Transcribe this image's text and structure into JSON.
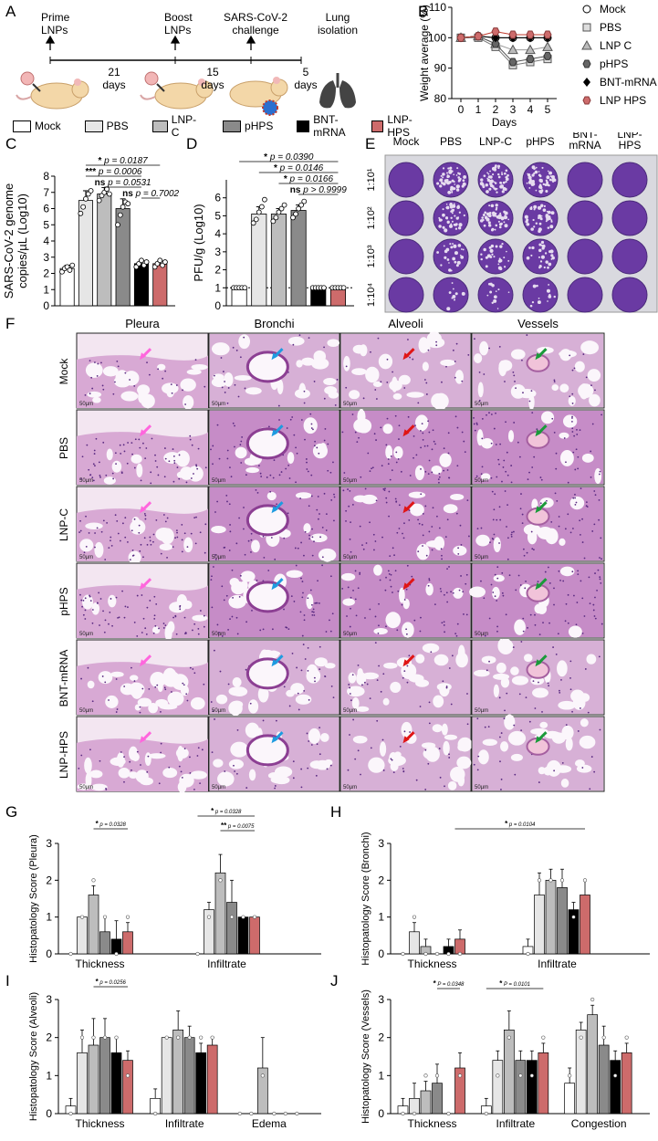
{
  "panels": {
    "A": "A",
    "B": "B",
    "C": "C",
    "D": "D",
    "E": "E",
    "F": "F",
    "G": "G",
    "H": "H",
    "I": "I",
    "J": "J"
  },
  "timeline": {
    "events": [
      "Prime LNPs",
      "Boost LNPs",
      "SARS-CoV-2 challenge",
      "Lung isolation"
    ],
    "event_lines": [
      [
        "Prime",
        "LNPs"
      ],
      [
        "Boost",
        "LNPs"
      ],
      [
        "SARS-CoV-2",
        "challenge"
      ],
      [
        "Lung",
        "isolation"
      ]
    ],
    "intervals": [
      [
        "21",
        "days"
      ],
      [
        "15",
        "days"
      ],
      [
        "5",
        "days"
      ]
    ]
  },
  "group_legend": [
    {
      "label": "Mock",
      "color": "#ffffff"
    },
    {
      "label": "PBS",
      "color": "#e6e6e6"
    },
    {
      "label": "LNP-C",
      "color": "#bdbdbd"
    },
    {
      "label": "pHPS",
      "color": "#8a8a8a"
    },
    {
      "label": "BNT-mRNA",
      "color": "#000000"
    },
    {
      "label": "LNP-HPS",
      "color": "#cd6b6b"
    }
  ],
  "colors": {
    "mock": "#ffffff",
    "pbs": "#e6e6e6",
    "lnpc": "#bdbdbd",
    "phps": "#8a8a8a",
    "bnt": "#000000",
    "lnphps": "#cd6b6b",
    "crystal": "#6a3aa3"
  },
  "chart_data": [
    {
      "id": "B",
      "type": "line",
      "ylabel": "Weight average (%)",
      "xlabel": "Days",
      "x": [
        0,
        1,
        2,
        3,
        4,
        5
      ],
      "ylim": [
        80,
        110
      ],
      "yticks": [
        80,
        90,
        100,
        110
      ],
      "series": [
        {
          "name": "Mock",
          "marker": "circle-open",
          "values": [
            100,
            100.5,
            100,
            100,
            100,
            100
          ]
        },
        {
          "name": "PBS",
          "marker": "square-gray",
          "values": [
            100,
            100,
            97,
            91,
            92,
            93
          ]
        },
        {
          "name": "LNP C",
          "marker": "triangle-gray",
          "values": [
            100,
            100.5,
            98,
            96,
            96,
            97
          ]
        },
        {
          "name": "pHPS",
          "marker": "hexagon-dark",
          "values": [
            100,
            100.5,
            98,
            92,
            93,
            94
          ]
        },
        {
          "name": "BNT-mRNA",
          "marker": "diamond-black",
          "values": [
            100,
            100.5,
            100,
            100,
            100,
            100
          ]
        },
        {
          "name": "LNP HPS",
          "marker": "hexagon-red",
          "values": [
            100,
            100.5,
            102,
            101,
            101,
            101
          ]
        }
      ]
    },
    {
      "id": "C",
      "type": "bar",
      "ylabel_lines": [
        "SARS-CoV-2 genome",
        "copies/µL (Log10)"
      ],
      "ylim": [
        0,
        8
      ],
      "yticks": [
        0,
        1,
        2,
        3,
        4,
        5,
        6,
        7,
        8
      ],
      "categories": [
        "Mock",
        "PBS",
        "LNP-C",
        "pHPS",
        "BNT-mRNA",
        "LNP-HPS"
      ],
      "values": [
        2.3,
        6.5,
        6.9,
        6.0,
        2.6,
        2.6
      ],
      "errors": [
        0.2,
        0.6,
        0.4,
        0.6,
        0.2,
        0.2
      ],
      "points": [
        [
          2.1,
          2.3,
          2.4,
          2.2,
          2.5
        ],
        [
          5.7,
          6.1,
          6.6,
          6.9,
          7.1
        ],
        [
          6.5,
          6.8,
          7.0,
          7.2,
          6.9
        ],
        [
          5.0,
          5.6,
          6.1,
          6.4,
          6.3
        ],
        [
          2.4,
          2.6,
          2.8,
          2.5,
          2.7
        ],
        [
          2.4,
          2.6,
          2.8,
          2.5,
          2.7
        ]
      ],
      "annotations": [
        {
          "stars": "*",
          "text": "p = 0.0187"
        },
        {
          "stars": "***",
          "text": "p = 0.0006"
        },
        {
          "stars": "ns",
          "text": "p = 0.0531"
        },
        {
          "stars": "ns",
          "text": "p = 0.7002"
        }
      ]
    },
    {
      "id": "D",
      "type": "bar",
      "ylabel": "PFU/g (Log10)",
      "ylim": [
        0,
        7
      ],
      "yticks": [
        0,
        1,
        2,
        3,
        4,
        5,
        6
      ],
      "categories": [
        "Mock",
        "PBS",
        "LNP-C",
        "pHPS",
        "BNT-mRNA",
        "LNP-HPS"
      ],
      "values": [
        1.0,
        5.1,
        5.1,
        5.3,
        1.0,
        1.0
      ],
      "errors": [
        0.05,
        0.4,
        0.3,
        0.3,
        0.05,
        0.05
      ],
      "points": [
        [
          1,
          1,
          1,
          1,
          1
        ],
        [
          4.6,
          4.8,
          5.2,
          5.5,
          5.9
        ],
        [
          4.7,
          4.9,
          5.2,
          5.4,
          5.6
        ],
        [
          4.9,
          5.1,
          5.4,
          5.6,
          5.8
        ],
        [
          1,
          1,
          1,
          1,
          1
        ],
        [
          1,
          1,
          1,
          1,
          1
        ]
      ],
      "annotations": [
        {
          "stars": "*",
          "text": "p = 0.0390"
        },
        {
          "stars": "*",
          "text": "p = 0.0146"
        },
        {
          "stars": "*",
          "text": "p = 0.0166"
        },
        {
          "stars": "ns",
          "text": "p > 0.9999"
        }
      ]
    },
    {
      "id": "G",
      "type": "bar",
      "ylabel": "Histopatology Score (Pleura)",
      "ylim": [
        0,
        3
      ],
      "yticks": [
        0,
        1,
        2,
        3
      ],
      "groups": [
        "Thickness",
        "Infiltrate"
      ],
      "values": [
        [
          0,
          1.0,
          1.6,
          0.6,
          0.4,
          0.6
        ],
        [
          0,
          1.2,
          2.2,
          1.4,
          1.0,
          1.0
        ]
      ],
      "errors": [
        [
          0,
          0,
          0.25,
          0.4,
          0.5,
          0.25
        ],
        [
          0,
          0.2,
          0.5,
          0.6,
          0,
          0
        ]
      ],
      "annotations": [
        {
          "stars": "*",
          "text": "p = 0.0328"
        },
        {
          "stars": "*",
          "text": "p = 0.0328"
        },
        {
          "stars": "**",
          "text": "p = 0.0075"
        }
      ]
    },
    {
      "id": "H",
      "type": "bar",
      "ylabel": "Histopatology Score (Bronchi)",
      "ylim": [
        0,
        3
      ],
      "yticks": [
        0,
        1,
        2,
        3
      ],
      "groups": [
        "Thickness",
        "Infiltrate"
      ],
      "values": [
        [
          0,
          0.6,
          0.2,
          0,
          0.2,
          0.4
        ],
        [
          0.2,
          1.6,
          2.0,
          1.8,
          1.2,
          1.6
        ]
      ],
      "errors": [
        [
          0,
          0.25,
          0.2,
          0,
          0.2,
          0.25
        ],
        [
          0.2,
          0.6,
          0.3,
          0.5,
          0.2,
          0.4
        ]
      ],
      "annotations": [
        {
          "stars": "*",
          "text": "p = 0.0104"
        }
      ]
    },
    {
      "id": "I",
      "type": "bar",
      "ylabel": "Histopatology Score (Alveoli)",
      "ylim": [
        0,
        3
      ],
      "yticks": [
        0,
        1,
        2,
        3
      ],
      "groups": [
        "Thickness",
        "Infiltrate",
        "Edema"
      ],
      "values": [
        [
          0.2,
          1.6,
          1.8,
          2.0,
          1.6,
          1.4
        ],
        [
          0.4,
          2.0,
          2.2,
          2.0,
          1.6,
          1.8
        ],
        [
          0,
          0,
          1.2,
          0,
          0,
          0
        ]
      ],
      "errors": [
        [
          0.2,
          0.6,
          0.7,
          0.5,
          0.4,
          0.25
        ],
        [
          0.25,
          0,
          0.5,
          0.3,
          0.25,
          0.2
        ],
        [
          0,
          0,
          0.8,
          0,
          0,
          0
        ]
      ],
      "annotations": [
        {
          "stars": "*",
          "text": "p = 0.0256"
        }
      ]
    },
    {
      "id": "J",
      "type": "bar",
      "ylabel": "Histopatology Score (Vessels)",
      "ylim": [
        0,
        3
      ],
      "yticks": [
        0,
        1,
        2,
        3
      ],
      "groups": [
        "Thickness",
        "Infiltrate",
        "Congestion"
      ],
      "values": [
        [
          0.2,
          0.4,
          0.6,
          0.8,
          0,
          1.2
        ],
        [
          0.2,
          1.4,
          2.2,
          1.4,
          1.4,
          1.6
        ],
        [
          0.8,
          2.2,
          2.6,
          1.8,
          1.4,
          1.6
        ]
      ],
      "errors": [
        [
          0.2,
          0.4,
          0.25,
          0.5,
          0,
          0.4
        ],
        [
          0.2,
          0.25,
          0.5,
          0.25,
          0.25,
          0.25
        ],
        [
          0.4,
          0.2,
          0.25,
          0.5,
          0.25,
          0.25
        ]
      ],
      "annotations": [
        {
          "stars": "*",
          "text": "P = 0.0348"
        },
        {
          "stars": "*",
          "text": "P = 0.0101"
        }
      ]
    }
  ],
  "plaque": {
    "columns": [
      "Mock",
      "PBS",
      "LNP-C",
      "pHPS",
      "BNT-mRNA",
      "LNP-HPS"
    ],
    "column_lines": [
      [
        "Mock"
      ],
      [
        "PBS"
      ],
      [
        "LNP-C"
      ],
      [
        "pHPS"
      ],
      [
        "BNT-",
        "mRNA"
      ],
      [
        "LNP-",
        "HPS"
      ]
    ],
    "dilutions": [
      "1:10¹",
      "1:10²",
      "1:10³",
      "1:10⁴"
    ],
    "plaque_density": [
      [
        0,
        0.9,
        0.9,
        0.9,
        0,
        0
      ],
      [
        0,
        0.7,
        0.8,
        0.7,
        0,
        0
      ],
      [
        0,
        0.4,
        0.45,
        0.5,
        0,
        0
      ],
      [
        0,
        0.15,
        0.2,
        0.2,
        0,
        0
      ]
    ]
  },
  "histology": {
    "columns": [
      "Pleura",
      "Bronchi",
      "Alveoli",
      "Vessels"
    ],
    "rows": [
      "Mock",
      "PBS",
      "LNP-C",
      "pHPS",
      "BNT-mRNA",
      "LNP-HPS"
    ],
    "scale_label": "50µm",
    "arrow_colors": [
      "#ff66dd",
      "#1e9be0",
      "#e01515",
      "#1a9a3a"
    ]
  }
}
